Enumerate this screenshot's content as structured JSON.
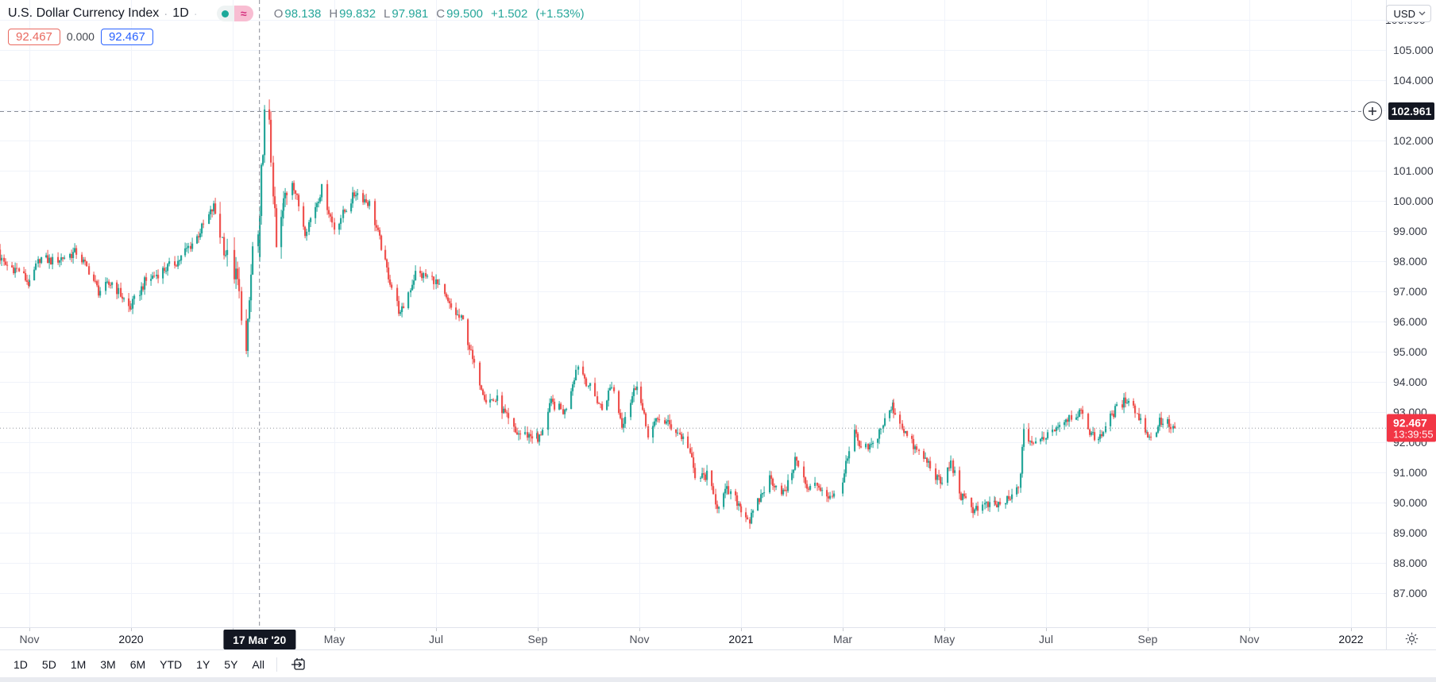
{
  "header": {
    "title": "U.S. Dollar Currency Index",
    "separator": "·",
    "interval": "1D",
    "trailing_dot": "·",
    "source_icons": {
      "left": "teal-dot-icon",
      "right": "pink-wave-icon",
      "wave_glyph": "≈"
    },
    "ohlc": {
      "o_label": "O",
      "o": "98.138",
      "h_label": "H",
      "h": "99.832",
      "l_label": "L",
      "l": "97.981",
      "c_label": "C",
      "c": "99.500",
      "change": "+1.502",
      "change_pct": "(+1.53%)"
    },
    "quote_badges": {
      "sell": "92.467",
      "spread": "0.000",
      "buy": "92.467"
    }
  },
  "currency_button": {
    "label": "USD"
  },
  "crosshair": {
    "time_label": "17 Mar '20",
    "date": "2020-03-17",
    "price_label": "102.961",
    "price": 102.961
  },
  "last_price": {
    "label": "92.467",
    "value": 92.467,
    "countdown": "13:39:55"
  },
  "price_axis": {
    "min_label": 87,
    "max_label": 106,
    "step": 1,
    "suffix": ".000"
  },
  "time_axis": {
    "ticks": [
      {
        "m": 0,
        "label": "Nov",
        "year": false
      },
      {
        "m": 2,
        "label": "2020",
        "year": true
      },
      {
        "m": 4,
        "label": "Mar",
        "year": false
      },
      {
        "m": 6,
        "label": "May",
        "year": false
      },
      {
        "m": 8,
        "label": "Jul",
        "year": false
      },
      {
        "m": 10,
        "label": "Sep",
        "year": false
      },
      {
        "m": 12,
        "label": "Nov",
        "year": false
      },
      {
        "m": 14,
        "label": "2021",
        "year": true
      },
      {
        "m": 16,
        "label": "Mar",
        "year": false
      },
      {
        "m": 18,
        "label": "May",
        "year": false
      },
      {
        "m": 20,
        "label": "Jul",
        "year": false
      },
      {
        "m": 22,
        "label": "Sep",
        "year": false
      },
      {
        "m": 24,
        "label": "Nov",
        "year": false
      },
      {
        "m": 26,
        "label": "2022",
        "year": true
      }
    ]
  },
  "toolbar": {
    "ranges": [
      "1D",
      "5D",
      "1M",
      "3M",
      "6M",
      "YTD",
      "1Y",
      "5Y",
      "All"
    ],
    "go_to_date_icon": "calendar-arrow-icon"
  },
  "icons": {
    "axis_settings": "gear-icon",
    "currency_caret": "chevron-down-icon",
    "alert_plus": "plus-circle-icon"
  },
  "colors": {
    "up": "#26a69a",
    "down": "#ef5350",
    "last_price_badge": "#f23645",
    "crosshair_badge": "#131722",
    "sell_badge": "#e9695f",
    "buy_badge": "#2962ff",
    "grid": "#f0f3fa",
    "crosshair_line": "#8a8e98",
    "price_line": "#9598a1"
  },
  "chart_data": {
    "type": "candlestick",
    "title": "U.S. Dollar Currency Index",
    "interval": "1D",
    "x_range": [
      "2019-10-09",
      "2022-01-16"
    ],
    "data_range": [
      "2019-10-09",
      "2021-09-17"
    ],
    "y_axis_labels": [
      87,
      88,
      89,
      90,
      91,
      92,
      93,
      94,
      95,
      96,
      97,
      98,
      99,
      100,
      101,
      102,
      103,
      104,
      105,
      106
    ],
    "grid": true,
    "legend_position": "top-left",
    "highlight_candle": {
      "date": "2020-03-17",
      "open": 98.138,
      "high": 99.832,
      "low": 97.981,
      "close": 99.5
    },
    "last_close": 92.467,
    "high_volatility_window": [
      "2020-02-24",
      "2020-04-03"
    ],
    "key_points": [
      [
        "2019-10-10",
        98.5
      ],
      [
        "2019-10-16",
        97.9
      ],
      [
        "2019-10-25",
        97.7
      ],
      [
        "2019-11-01",
        97.2
      ],
      [
        "2019-11-07",
        98.1
      ],
      [
        "2019-11-15",
        98.0
      ],
      [
        "2019-11-29",
        98.3
      ],
      [
        "2019-12-06",
        97.7
      ],
      [
        "2019-12-12",
        97.0
      ],
      [
        "2019-12-20",
        97.3
      ],
      [
        "2019-12-31",
        96.4
      ],
      [
        "2020-01-09",
        97.3
      ],
      [
        "2020-01-17",
        97.6
      ],
      [
        "2020-01-29",
        98.0
      ],
      [
        "2020-02-10",
        98.8
      ],
      [
        "2020-02-20",
        99.8
      ],
      [
        "2020-02-28",
        98.1
      ],
      [
        "2020-03-04",
        97.3
      ],
      [
        "2020-03-09",
        94.9
      ],
      [
        "2020-03-13",
        98.4
      ],
      [
        "2020-03-16",
        98.8
      ],
      [
        "2020-03-18",
        100.9
      ],
      [
        "2020-03-20",
        102.8
      ],
      [
        "2020-03-23",
        102.4
      ],
      [
        "2020-03-27",
        98.4
      ],
      [
        "2020-04-02",
        100.2
      ],
      [
        "2020-04-06",
        100.7
      ],
      [
        "2020-04-14",
        99.0
      ],
      [
        "2020-04-24",
        100.4
      ],
      [
        "2020-05-01",
        99.1
      ],
      [
        "2020-05-14",
        100.3
      ],
      [
        "2020-05-22",
        99.9
      ],
      [
        "2020-06-01",
        97.9
      ],
      [
        "2020-06-10",
        96.2
      ],
      [
        "2020-06-19",
        97.6
      ],
      [
        "2020-06-30",
        97.4
      ],
      [
        "2020-07-09",
        96.5
      ],
      [
        "2020-07-17",
        96.0
      ],
      [
        "2020-07-24",
        94.5
      ],
      [
        "2020-07-31",
        93.4
      ],
      [
        "2020-08-07",
        93.4
      ],
      [
        "2020-08-18",
        92.3
      ],
      [
        "2020-08-31",
        92.2
      ],
      [
        "2020-09-01",
        92.0
      ],
      [
        "2020-09-09",
        93.3
      ],
      [
        "2020-09-17",
        93.0
      ],
      [
        "2020-09-25",
        94.6
      ],
      [
        "2020-10-02",
        93.8
      ],
      [
        "2020-10-09",
        93.1
      ],
      [
        "2020-10-15",
        93.9
      ],
      [
        "2020-10-21",
        92.6
      ],
      [
        "2020-10-30",
        94.0
      ],
      [
        "2020-11-06",
        92.3
      ],
      [
        "2020-11-13",
        92.8
      ],
      [
        "2020-11-23",
        92.4
      ],
      [
        "2020-11-30",
        91.9
      ],
      [
        "2020-12-04",
        90.8
      ],
      [
        "2020-12-11",
        90.9
      ],
      [
        "2020-12-17",
        89.9
      ],
      [
        "2020-12-23",
        90.4
      ],
      [
        "2020-12-31",
        89.9
      ],
      [
        "2021-01-06",
        89.4
      ],
      [
        "2021-01-12",
        90.1
      ],
      [
        "2021-01-18",
        90.8
      ],
      [
        "2021-01-27",
        90.3
      ],
      [
        "2021-02-04",
        91.5
      ],
      [
        "2021-02-10",
        90.4
      ],
      [
        "2021-02-16",
        90.6
      ],
      [
        "2021-02-25",
        90.1
      ],
      [
        "2021-03-02",
        91.0
      ],
      [
        "2021-03-08",
        92.3
      ],
      [
        "2021-03-12",
        91.7
      ],
      [
        "2021-03-19",
        91.9
      ],
      [
        "2021-03-24",
        92.5
      ],
      [
        "2021-03-31",
        93.2
      ],
      [
        "2021-04-09",
        92.2
      ],
      [
        "2021-04-15",
        91.7
      ],
      [
        "2021-04-22",
        91.3
      ],
      [
        "2021-04-29",
        90.6
      ],
      [
        "2021-05-05",
        91.3
      ],
      [
        "2021-05-11",
        90.2
      ],
      [
        "2021-05-18",
        89.8
      ],
      [
        "2021-05-25",
        89.9
      ],
      [
        "2021-06-02",
        89.9
      ],
      [
        "2021-06-10",
        90.1
      ],
      [
        "2021-06-15",
        90.5
      ],
      [
        "2021-06-18",
        92.3
      ],
      [
        "2021-06-25",
        91.9
      ],
      [
        "2021-07-02",
        92.3
      ],
      [
        "2021-07-13",
        92.8
      ],
      [
        "2021-07-21",
        93.0
      ],
      [
        "2021-07-30",
        92.1
      ],
      [
        "2021-08-04",
        92.3
      ],
      [
        "2021-08-11",
        93.0
      ],
      [
        "2021-08-20",
        93.5
      ],
      [
        "2021-08-27",
        92.7
      ],
      [
        "2021-09-03",
        92.1
      ],
      [
        "2021-09-08",
        92.7
      ],
      [
        "2021-09-14",
        92.6
      ],
      [
        "2021-09-17",
        92.467
      ]
    ]
  }
}
